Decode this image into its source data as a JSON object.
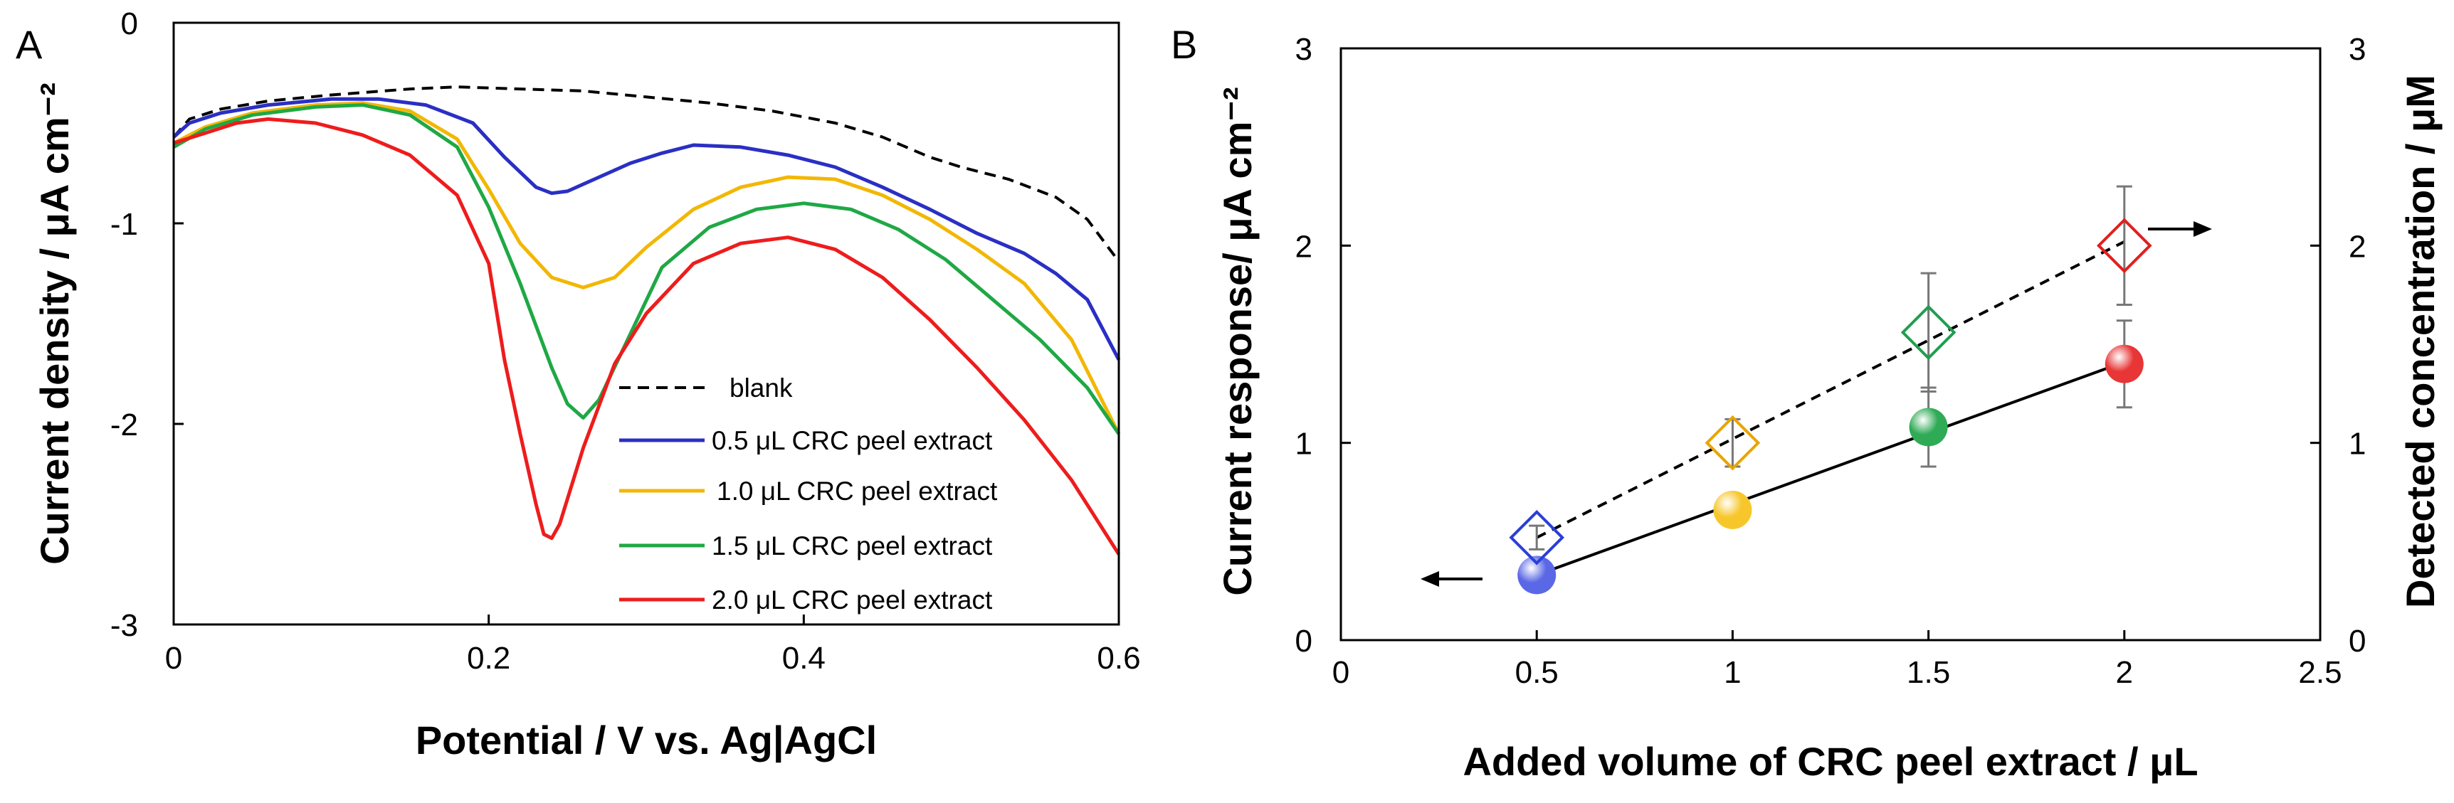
{
  "chart_data": [
    {
      "panel": "A",
      "type": "line",
      "title": "",
      "xlabel": "Potential / V vs. Ag|AgCl",
      "ylabel": "Current density / μA cm⁻²",
      "xlim": [
        0,
        0.6
      ],
      "ylim": [
        -3,
        0
      ],
      "xticks": [
        "0",
        "0.2",
        "0.4",
        "0.6"
      ],
      "xtick_values": [
        0,
        0.2,
        0.4,
        0.6
      ],
      "yticks": [
        "0",
        "-1",
        "-2",
        "-3"
      ],
      "ytick_values": [
        0,
        -1,
        -2,
        -3
      ],
      "grid": false,
      "legend_position": "bottom-right",
      "series": [
        {
          "name": "blank",
          "color": "#000000",
          "dashed": true,
          "points": [
            [
              0.0,
              -0.57
            ],
            [
              0.01,
              -0.48
            ],
            [
              0.03,
              -0.43
            ],
            [
              0.06,
              -0.39
            ],
            [
              0.1,
              -0.36
            ],
            [
              0.15,
              -0.33
            ],
            [
              0.18,
              -0.32
            ],
            [
              0.22,
              -0.33
            ],
            [
              0.26,
              -0.34
            ],
            [
              0.3,
              -0.37
            ],
            [
              0.34,
              -0.4
            ],
            [
              0.38,
              -0.44
            ],
            [
              0.42,
              -0.5
            ],
            [
              0.45,
              -0.57
            ],
            [
              0.48,
              -0.67
            ],
            [
              0.5,
              -0.72
            ],
            [
              0.53,
              -0.78
            ],
            [
              0.56,
              -0.87
            ],
            [
              0.58,
              -0.98
            ],
            [
              0.6,
              -1.19
            ]
          ]
        },
        {
          "name": "0.5 μL CRC peel extract",
          "color": "#2a2fc4",
          "dashed": false,
          "points": [
            [
              0.0,
              -0.57
            ],
            [
              0.01,
              -0.5
            ],
            [
              0.03,
              -0.45
            ],
            [
              0.06,
              -0.41
            ],
            [
              0.1,
              -0.38
            ],
            [
              0.13,
              -0.38
            ],
            [
              0.16,
              -0.41
            ],
            [
              0.19,
              -0.5
            ],
            [
              0.21,
              -0.67
            ],
            [
              0.23,
              -0.82
            ],
            [
              0.24,
              -0.85
            ],
            [
              0.25,
              -0.84
            ],
            [
              0.27,
              -0.77
            ],
            [
              0.29,
              -0.7
            ],
            [
              0.31,
              -0.65
            ],
            [
              0.33,
              -0.61
            ],
            [
              0.36,
              -0.62
            ],
            [
              0.39,
              -0.66
            ],
            [
              0.42,
              -0.72
            ],
            [
              0.45,
              -0.82
            ],
            [
              0.48,
              -0.93
            ],
            [
              0.51,
              -1.05
            ],
            [
              0.54,
              -1.15
            ],
            [
              0.56,
              -1.25
            ],
            [
              0.58,
              -1.38
            ],
            [
              0.6,
              -1.68
            ]
          ]
        },
        {
          "name": "1.0 μL CRC peel extract",
          "color": "#f2b705",
          "dashed": false,
          "points": [
            [
              0.0,
              -0.6
            ],
            [
              0.02,
              -0.52
            ],
            [
              0.05,
              -0.45
            ],
            [
              0.09,
              -0.41
            ],
            [
              0.12,
              -0.4
            ],
            [
              0.15,
              -0.44
            ],
            [
              0.18,
              -0.58
            ],
            [
              0.2,
              -0.83
            ],
            [
              0.22,
              -1.1
            ],
            [
              0.24,
              -1.27
            ],
            [
              0.26,
              -1.32
            ],
            [
              0.28,
              -1.27
            ],
            [
              0.3,
              -1.12
            ],
            [
              0.33,
              -0.93
            ],
            [
              0.36,
              -0.82
            ],
            [
              0.39,
              -0.77
            ],
            [
              0.42,
              -0.78
            ],
            [
              0.45,
              -0.86
            ],
            [
              0.48,
              -0.98
            ],
            [
              0.51,
              -1.13
            ],
            [
              0.54,
              -1.3
            ],
            [
              0.57,
              -1.58
            ],
            [
              0.6,
              -2.05
            ]
          ]
        },
        {
          "name": "1.5 μL CRC peel extract",
          "color": "#1fa845",
          "dashed": false,
          "points": [
            [
              0.0,
              -0.62
            ],
            [
              0.02,
              -0.53
            ],
            [
              0.05,
              -0.46
            ],
            [
              0.09,
              -0.42
            ],
            [
              0.12,
              -0.41
            ],
            [
              0.15,
              -0.46
            ],
            [
              0.18,
              -0.62
            ],
            [
              0.2,
              -0.92
            ],
            [
              0.22,
              -1.3
            ],
            [
              0.24,
              -1.72
            ],
            [
              0.25,
              -1.9
            ],
            [
              0.26,
              -1.97
            ],
            [
              0.27,
              -1.88
            ],
            [
              0.29,
              -1.55
            ],
            [
              0.31,
              -1.22
            ],
            [
              0.34,
              -1.02
            ],
            [
              0.37,
              -0.93
            ],
            [
              0.4,
              -0.9
            ],
            [
              0.43,
              -0.93
            ],
            [
              0.46,
              -1.03
            ],
            [
              0.49,
              -1.18
            ],
            [
              0.52,
              -1.38
            ],
            [
              0.55,
              -1.58
            ],
            [
              0.58,
              -1.82
            ],
            [
              0.6,
              -2.05
            ]
          ]
        },
        {
          "name": "2.0 μL CRC peel extract",
          "color": "#ee1c1c",
          "dashed": false,
          "points": [
            [
              0.0,
              -0.6
            ],
            [
              0.02,
              -0.55
            ],
            [
              0.04,
              -0.5
            ],
            [
              0.06,
              -0.48
            ],
            [
              0.09,
              -0.5
            ],
            [
              0.12,
              -0.56
            ],
            [
              0.15,
              -0.66
            ],
            [
              0.18,
              -0.86
            ],
            [
              0.2,
              -1.2
            ],
            [
              0.21,
              -1.68
            ],
            [
              0.22,
              -2.05
            ],
            [
              0.23,
              -2.4
            ],
            [
              0.235,
              -2.55
            ],
            [
              0.24,
              -2.57
            ],
            [
              0.245,
              -2.5
            ],
            [
              0.26,
              -2.12
            ],
            [
              0.28,
              -1.7
            ],
            [
              0.3,
              -1.45
            ],
            [
              0.33,
              -1.2
            ],
            [
              0.36,
              -1.1
            ],
            [
              0.39,
              -1.07
            ],
            [
              0.42,
              -1.13
            ],
            [
              0.45,
              -1.27
            ],
            [
              0.48,
              -1.48
            ],
            [
              0.51,
              -1.72
            ],
            [
              0.54,
              -1.98
            ],
            [
              0.57,
              -2.28
            ],
            [
              0.6,
              -2.65
            ]
          ]
        }
      ]
    },
    {
      "panel": "B",
      "type": "scatter",
      "title": "",
      "xlabel": "Added volume of CRC peel extract / μL",
      "ylabel_left": "Current response/ μA cm⁻²",
      "ylabel_right": "Detected concentration / μM",
      "xlim": [
        0,
        2.5
      ],
      "ylim_left": [
        0,
        3
      ],
      "ylim_right": [
        0,
        3
      ],
      "xticks": [
        "0",
        "0.5",
        "1",
        "1.5",
        "2",
        "2.5"
      ],
      "xtick_values": [
        0,
        0.5,
        1,
        1.5,
        2,
        2.5
      ],
      "yticks_left": [
        "0",
        "1",
        "2",
        "3"
      ],
      "yticks_right": [
        "0",
        "1",
        "2",
        "3"
      ],
      "ytick_values": [
        0,
        1,
        2,
        3
      ],
      "grid": false,
      "series": [
        {
          "name": "Current response",
          "axis": "left",
          "marker": "circle",
          "x": [
            0.5,
            1.0,
            1.5,
            2.0
          ],
          "y": [
            0.33,
            0.66,
            1.08,
            1.4
          ],
          "error": [
            0,
            0,
            0.2,
            0.22
          ],
          "colors": [
            "#5a68e6",
            "#f7c62a",
            "#2faa55",
            "#e83535"
          ],
          "fit": {
            "x": [
              0.5,
              2.0
            ],
            "y": [
              0.33,
              1.41
            ],
            "dashed": false
          }
        },
        {
          "name": "Detected concentration",
          "axis": "right",
          "marker": "diamond",
          "x": [
            0.5,
            1.0,
            1.5,
            2.0
          ],
          "y": [
            0.52,
            1.0,
            1.56,
            2.0
          ],
          "error": [
            0.06,
            0.12,
            0.3,
            0.3
          ],
          "colors": [
            "#2a3fd6",
            "#e8a500",
            "#1f9e4f",
            "#e01f1f"
          ],
          "fit": {
            "x": [
              0.5,
              2.0
            ],
            "y": [
              0.52,
              2.02
            ],
            "dashed": true
          }
        }
      ],
      "annotations": [
        {
          "type": "arrow",
          "direction": "left",
          "meaning": "left axis"
        },
        {
          "type": "arrow",
          "direction": "right",
          "meaning": "right axis"
        }
      ]
    }
  ],
  "labels": {
    "panel_a": "A",
    "panel_b": "B"
  },
  "colors": {
    "axis": "#000000",
    "errorbar": "#777777"
  }
}
